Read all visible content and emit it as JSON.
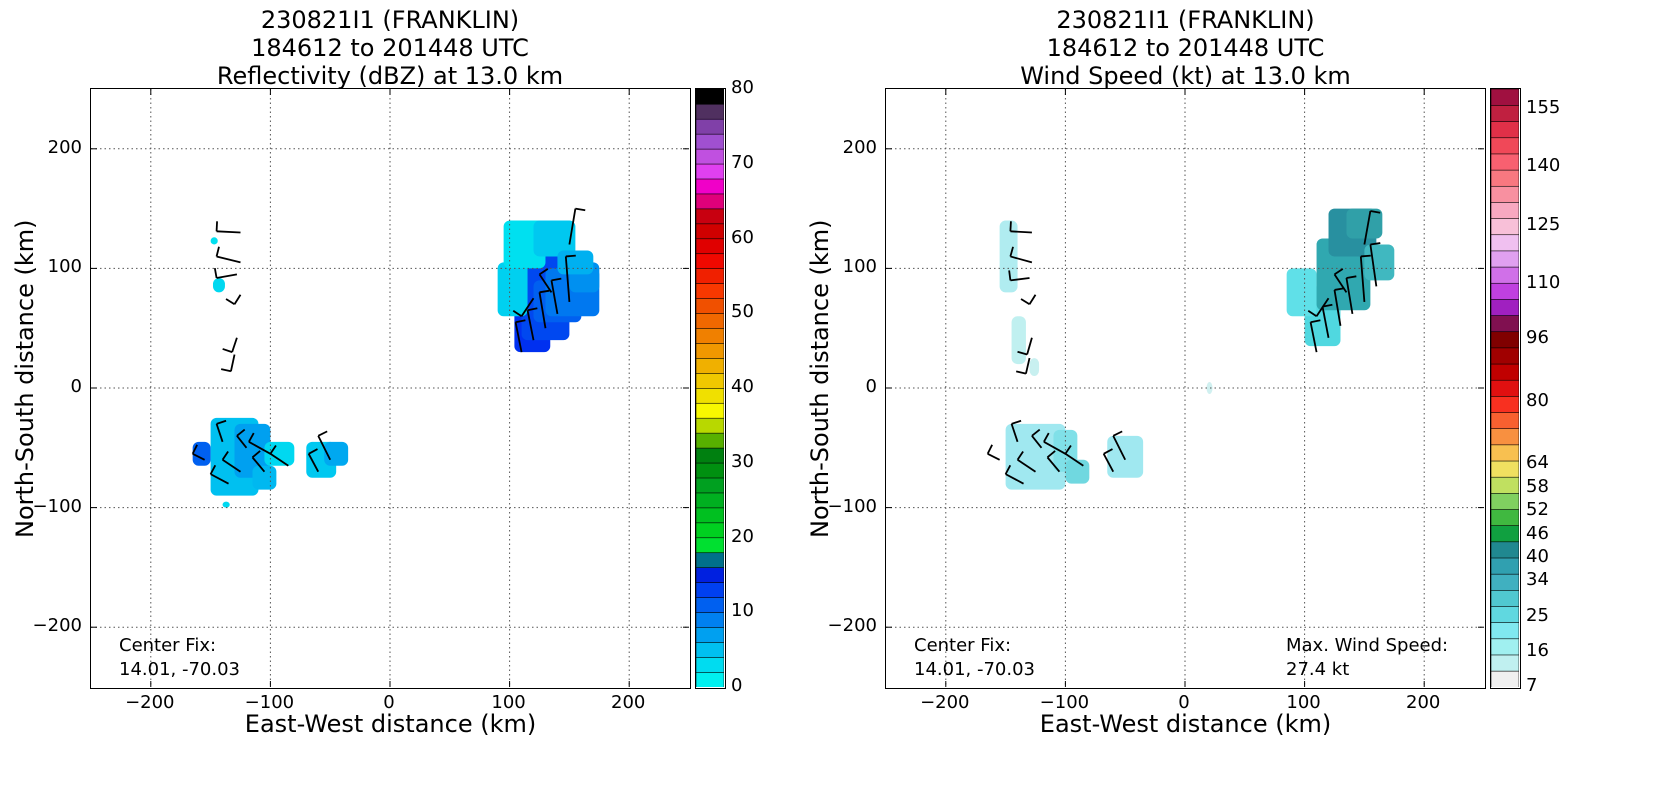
{
  "chart_data": [
    {
      "type": "heatmap",
      "title_lines": [
        "230821I1 (FRANKLIN)",
        "184612 to 201448 UTC",
        "Reflectivity (dBZ) at 13.0 km"
      ],
      "xlabel": "East-West distance (km)",
      "ylabel": "North-South distance (km)",
      "xlim": [
        -250,
        250
      ],
      "ylim": [
        -250,
        250
      ],
      "xticks": [
        "−200",
        "−100",
        "0",
        "100",
        "200"
      ],
      "yticks": [
        "200",
        "100",
        "0",
        "−100",
        "−200"
      ],
      "grid": true,
      "annotation_lines": [
        "Center Fix:",
        "14.01, -70.03"
      ],
      "colorbar": {
        "label_values": [
          "0",
          "10",
          "20",
          "30",
          "40",
          "50",
          "60",
          "70",
          "80"
        ],
        "colors": [
          "#00f0f0",
          "#00dcf0",
          "#00c0f0",
          "#00a0f0",
          "#0080f0",
          "#0060f0",
          "#0040f0",
          "#0020e0",
          "#00708a",
          "#00e030",
          "#00d020",
          "#00c020",
          "#00b020",
          "#00a020",
          "#009010",
          "#008010",
          "#58b000",
          "#b8d800",
          "#f8f800",
          "#f0e000",
          "#f0c800",
          "#f0b000",
          "#f09800",
          "#f08000",
          "#f06800",
          "#f05000",
          "#f83800",
          "#f02000",
          "#f00800",
          "#e00000",
          "#d00000",
          "#c80010",
          "#e0007a",
          "#f000c8",
          "#e040f0",
          "#c050e0",
          "#a050d0",
          "#8040a8",
          "#503060",
          "#000000"
        ],
        "range": [
          0,
          80
        ]
      },
      "regions": [
        {
          "cells": [
            [
              104,
              30,
              30,
              60,
              "#0030f0"
            ],
            [
              110,
              40,
              40,
              70,
              "#0048f0"
            ],
            [
              120,
              55,
              40,
              35,
              "#0060f0"
            ],
            [
              130,
              60,
              45,
              40,
              "#0078f0"
            ],
            [
              150,
              80,
              25,
              25,
              "#0090f0"
            ],
            [
              90,
              60,
              25,
              45,
              "#00d0f0"
            ],
            [
              95,
              100,
              35,
              40,
              "#00e0f0"
            ],
            [
              120,
              110,
              35,
              30,
              "#00c8f0"
            ],
            [
              140,
              95,
              30,
              20,
              "#00b0f0"
            ]
          ]
        },
        {
          "cells": [
            [
              -150,
              -90,
              40,
              65,
              "#00c0f0"
            ],
            [
              -130,
              -75,
              30,
              45,
              "#00a0f0"
            ],
            [
              -115,
              -85,
              20,
              20,
              "#00b8f0"
            ],
            [
              -165,
              -65,
              15,
              20,
              "#0060f0"
            ],
            [
              -105,
              -65,
              25,
              20,
              "#00d8f0"
            ],
            [
              -70,
              -75,
              25,
              30,
              "#00c8f0"
            ],
            [
              -55,
              -65,
              20,
              20,
              "#00a8f0"
            ]
          ]
        },
        {
          "cells": [
            [
              -148,
              80,
              10,
              12,
              "#00d8f0"
            ],
            [
              -150,
              120,
              6,
              6,
              "#00e0f0"
            ],
            [
              -140,
              -100,
              6,
              5,
              "#00d8f0"
            ]
          ]
        }
      ],
      "max_wind": null
    },
    {
      "type": "heatmap",
      "title_lines": [
        "230821I1 (FRANKLIN)",
        "184612 to 201448 UTC",
        "Wind Speed (kt) at 13.0 km"
      ],
      "xlabel": "East-West distance (km)",
      "ylabel": "North-South distance (km)",
      "xlim": [
        -250,
        250
      ],
      "ylim": [
        -250,
        250
      ],
      "xticks": [
        "−200",
        "−100",
        "0",
        "100",
        "200"
      ],
      "yticks": [
        "200",
        "100",
        "0",
        "−100",
        "−200"
      ],
      "grid": true,
      "annotation_lines": [
        "Center Fix:",
        "14.01, -70.03"
      ],
      "colorbar": {
        "label_values": [
          "7",
          "16",
          "25",
          "34",
          "40",
          "46",
          "52",
          "58",
          "64",
          "80",
          "96",
          "110",
          "125",
          "140",
          "155"
        ],
        "colors": [
          "#f0f0f0",
          "#c0f0f0",
          "#a0f0f0",
          "#80e8f0",
          "#60d8e0",
          "#50c8d0",
          "#40b0c0",
          "#30a0b0",
          "#208890",
          "#10a040",
          "#40b840",
          "#80d060",
          "#c0e060",
          "#f0e060",
          "#f8c050",
          "#f89040",
          "#f86030",
          "#f83020",
          "#e01010",
          "#c00000",
          "#a00000",
          "#800000",
          "#801050",
          "#a020c0",
          "#c040e0",
          "#d070e8",
          "#e0a0f0",
          "#f0c0f0",
          "#f8c0d8",
          "#f8a8c0",
          "#f890a0",
          "#f87880",
          "#f86070",
          "#f04858",
          "#e03048",
          "#c02040",
          "#a01040"
        ],
        "range": [
          7,
          160
        ]
      },
      "regions": [
        {
          "cells": [
            [
              100,
              35,
              30,
              50,
              "#50d8e0"
            ],
            [
              85,
              60,
              25,
              40,
              "#60e0e8"
            ],
            [
              110,
              65,
              45,
              60,
              "#30a8b0"
            ],
            [
              120,
              110,
              40,
              40,
              "#2890a0"
            ],
            [
              150,
              90,
              25,
              30,
              "#40b8c0"
            ],
            [
              135,
              125,
              30,
              25,
              "#30a0a8"
            ]
          ]
        },
        {
          "cells": [
            [
              -150,
              -85,
              50,
              55,
              "#a0e8f0"
            ],
            [
              -110,
              -70,
              20,
              35,
              "#80e0e8"
            ],
            [
              -100,
              -80,
              20,
              20,
              "#70d8e0"
            ],
            [
              -65,
              -75,
              30,
              35,
              "#a0e8f0"
            ]
          ]
        },
        {
          "cells": [
            [
              -155,
              80,
              15,
              60,
              "#b0ecf0"
            ],
            [
              -145,
              20,
              12,
              40,
              "#c0f0f0"
            ],
            [
              -130,
              10,
              8,
              15,
              "#c8f0f0"
            ],
            [
              18,
              -5,
              5,
              10,
              "#d0f0f0"
            ]
          ]
        }
      ],
      "max_wind": {
        "lines": [
          "Max. Wind Speed:",
          "27.4 kt"
        ]
      }
    }
  ],
  "wind_barbs": [
    [
      [
        -125,
        130,
        -145,
        131
      ],
      [
        -125,
        105,
        -145,
        110
      ],
      [
        -128,
        95,
        -145,
        92
      ],
      [
        -125,
        78,
        -130,
        70
      ],
      [
        -128,
        42,
        -132,
        30
      ],
      [
        -130,
        28,
        -133,
        14
      ],
      [
        110,
        30,
        105,
        55
      ],
      [
        120,
        40,
        115,
        65
      ],
      [
        130,
        50,
        125,
        80
      ],
      [
        140,
        62,
        135,
        90
      ],
      [
        150,
        72,
        147,
        110
      ],
      [
        120,
        75,
        110,
        60
      ],
      [
        135,
        80,
        125,
        95
      ],
      [
        150,
        120,
        155,
        150
      ],
      [
        -140,
        -45,
        -145,
        -30
      ],
      [
        -120,
        -50,
        -128,
        -40
      ],
      [
        -100,
        -55,
        -118,
        -45
      ],
      [
        -85,
        -65,
        -100,
        -55
      ],
      [
        -125,
        -70,
        -140,
        -60
      ],
      [
        -105,
        -70,
        -115,
        -58
      ],
      [
        -50,
        -60,
        -60,
        -40
      ],
      [
        -60,
        -70,
        -68,
        -55
      ],
      [
        -155,
        -60,
        -165,
        -55
      ],
      [
        -135,
        -80,
        -150,
        -72
      ]
    ],
    [
      [
        -128,
        130,
        -146,
        131
      ],
      [
        -128,
        105,
        -146,
        110
      ],
      [
        -130,
        92,
        -146,
        90
      ],
      [
        -125,
        78,
        -130,
        70
      ],
      [
        -128,
        42,
        -132,
        28
      ],
      [
        -130,
        25,
        -133,
        12
      ],
      [
        110,
        30,
        105,
        55
      ],
      [
        120,
        42,
        115,
        68
      ],
      [
        130,
        52,
        125,
        82
      ],
      [
        140,
        62,
        135,
        92
      ],
      [
        150,
        72,
        147,
        110
      ],
      [
        160,
        85,
        155,
        120
      ],
      [
        120,
        75,
        110,
        60
      ],
      [
        135,
        80,
        125,
        95
      ],
      [
        150,
        120,
        155,
        148
      ],
      [
        -140,
        -45,
        -145,
        -30
      ],
      [
        -120,
        -50,
        -128,
        -40
      ],
      [
        -100,
        -55,
        -118,
        -45
      ],
      [
        -85,
        -65,
        -100,
        -55
      ],
      [
        -125,
        -70,
        -140,
        -60
      ],
      [
        -105,
        -70,
        -115,
        -58
      ],
      [
        -50,
        -60,
        -60,
        -40
      ],
      [
        -60,
        -70,
        -68,
        -55
      ],
      [
        -155,
        -60,
        -165,
        -55
      ],
      [
        -135,
        -80,
        -150,
        -72
      ]
    ]
  ]
}
